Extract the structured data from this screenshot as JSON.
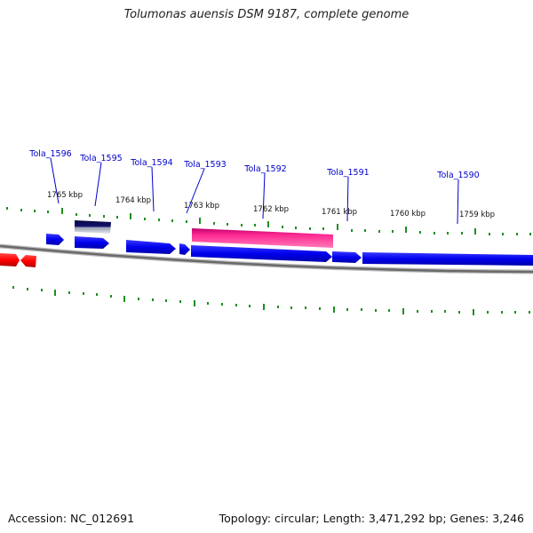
{
  "title": "Tolumonas auensis DSM 9187, complete genome",
  "footer": {
    "accession": "Accession: NC_012691",
    "topology": "Topology: circular; Length: 3,471,292 bp; Genes: 3,246"
  },
  "colors": {
    "forward_gene": "#0000ee",
    "highlight_gene": "#ff1f8f",
    "reverse_gene": "#ff0000",
    "dark_gene": "#0a0a5a",
    "backbone": "#888888",
    "tick": "#1e8f1e",
    "label": "#0000cc"
  },
  "coordinate_labels": [
    "1765 kbp",
    "1764 kbp",
    "1763 kbp",
    "1762 kbp",
    "1761 kbp",
    "1760 kbp",
    "1759 kbp"
  ],
  "gene_labels": [
    "Tola_1596",
    "Tola_1595",
    "Tola_1594",
    "Tola_1593",
    "Tola_1592",
    "Tola_1591",
    "Tola_1590"
  ]
}
